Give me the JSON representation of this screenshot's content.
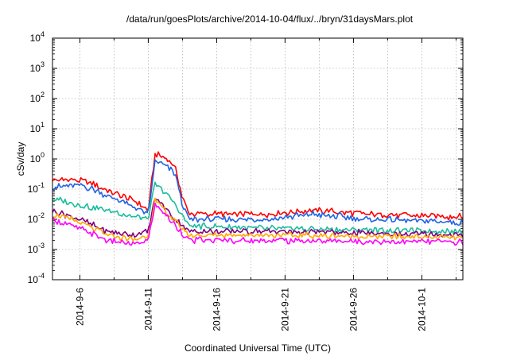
{
  "chart_data": {
    "type": "line",
    "title": "/data/run/goesPlots/archive/2014-10-04/flux/../bryn/31daysMars.plot",
    "xlabel": "Coordinated Universal Time (UTC)",
    "ylabel": "cSv/day",
    "y_scale": "log",
    "ylim": [
      0.0001,
      10000
    ],
    "xlim": [
      "2014-09-04",
      "2014-10-04"
    ],
    "grid": true,
    "x_ticks": [
      "2014-9-6",
      "2014-9-11",
      "2014-9-16",
      "2014-9-21",
      "2014-9-26",
      "2014-10-1"
    ],
    "y_ticks": [
      {
        "value": 0.0001,
        "base": "10",
        "exp": "-4"
      },
      {
        "value": 0.001,
        "base": "10",
        "exp": "-3"
      },
      {
        "value": 0.01,
        "base": "10",
        "exp": "-2"
      },
      {
        "value": 0.1,
        "base": "10",
        "exp": "-1"
      },
      {
        "value": 1,
        "base": "10",
        "exp": "0"
      },
      {
        "value": 10,
        "base": "10",
        "exp": "1"
      },
      {
        "value": 100,
        "base": "10",
        "exp": "2"
      },
      {
        "value": 1000,
        "base": "10",
        "exp": "3"
      },
      {
        "value": 10000,
        "base": "10",
        "exp": "4"
      }
    ],
    "series": [
      {
        "color": "#ff0000",
        "points": [
          [
            "2014-09-04",
            0.2
          ],
          [
            "2014-09-06",
            0.2
          ],
          [
            "2014-09-07",
            0.15
          ],
          [
            "2014-09-08",
            0.09
          ],
          [
            "2014-09-09",
            0.06
          ],
          [
            "2014-09-10",
            0.04
          ],
          [
            "2014-09-11",
            0.02
          ],
          [
            "2014-09-11.5",
            1.5
          ],
          [
            "2014-09-12",
            1.2
          ],
          [
            "2014-09-12.5",
            0.9
          ],
          [
            "2014-09-13",
            0.5
          ],
          [
            "2014-09-13.5",
            0.05
          ],
          [
            "2014-09-14",
            0.015
          ],
          [
            "2014-09-20",
            0.015
          ],
          [
            "2014-09-23",
            0.02
          ],
          [
            "2014-09-27",
            0.015
          ],
          [
            "2014-10-04",
            0.012
          ]
        ]
      },
      {
        "color": "#1e64e6",
        "points": [
          [
            "2014-09-04",
            0.12
          ],
          [
            "2014-09-06",
            0.13
          ],
          [
            "2014-09-07",
            0.1
          ],
          [
            "2014-09-08",
            0.06
          ],
          [
            "2014-09-09",
            0.04
          ],
          [
            "2014-09-10",
            0.025
          ],
          [
            "2014-09-11",
            0.015
          ],
          [
            "2014-09-11.5",
            0.8
          ],
          [
            "2014-09-12",
            0.7
          ],
          [
            "2014-09-12.5",
            0.5
          ],
          [
            "2014-09-13",
            0.3
          ],
          [
            "2014-09-13.5",
            0.03
          ],
          [
            "2014-09-14",
            0.01
          ],
          [
            "2014-09-20",
            0.01
          ],
          [
            "2014-09-23",
            0.015
          ],
          [
            "2014-09-27",
            0.01
          ],
          [
            "2014-10-04",
            0.008
          ]
        ]
      },
      {
        "color": "#1abc9c",
        "points": [
          [
            "2014-09-04",
            0.05
          ],
          [
            "2014-09-06",
            0.03
          ],
          [
            "2014-09-08",
            0.02
          ],
          [
            "2014-09-10",
            0.012
          ],
          [
            "2014-09-11",
            0.01
          ],
          [
            "2014-09-11.5",
            0.15
          ],
          [
            "2014-09-12",
            0.1
          ],
          [
            "2014-09-13",
            0.03
          ],
          [
            "2014-09-14",
            0.006
          ],
          [
            "2014-09-20",
            0.005
          ],
          [
            "2014-10-04",
            0.004
          ]
        ]
      },
      {
        "color": "#800080",
        "points": [
          [
            "2014-09-04",
            0.02
          ],
          [
            "2014-09-06",
            0.01
          ],
          [
            "2014-09-08",
            0.004
          ],
          [
            "2014-09-10",
            0.003
          ],
          [
            "2014-09-11",
            0.004
          ],
          [
            "2014-09-11.5",
            0.05
          ],
          [
            "2014-09-12",
            0.03
          ],
          [
            "2014-09-13",
            0.01
          ],
          [
            "2014-09-14",
            0.004
          ],
          [
            "2014-09-20",
            0.004
          ],
          [
            "2014-10-04",
            0.003
          ]
        ]
      },
      {
        "color": "#ffaa00",
        "points": [
          [
            "2014-09-04",
            0.015
          ],
          [
            "2014-09-06",
            0.008
          ],
          [
            "2014-09-08",
            0.003
          ],
          [
            "2014-09-10",
            0.002
          ],
          [
            "2014-09-11",
            0.003
          ],
          [
            "2014-09-11.5",
            0.04
          ],
          [
            "2014-09-12",
            0.025
          ],
          [
            "2014-09-13",
            0.008
          ],
          [
            "2014-09-14",
            0.003
          ],
          [
            "2014-09-20",
            0.003
          ],
          [
            "2014-10-04",
            0.0025
          ]
        ]
      },
      {
        "color": "#ff00ff",
        "points": [
          [
            "2014-09-04",
            0.01
          ],
          [
            "2014-09-06",
            0.005
          ],
          [
            "2014-09-08",
            0.002
          ],
          [
            "2014-09-10",
            0.0015
          ],
          [
            "2014-09-11",
            0.002
          ],
          [
            "2014-09-11.5",
            0.03
          ],
          [
            "2014-09-12",
            0.02
          ],
          [
            "2014-09-13",
            0.006
          ],
          [
            "2014-09-14",
            0.002
          ],
          [
            "2014-09-20",
            0.002
          ],
          [
            "2014-10-04",
            0.0018
          ]
        ]
      }
    ]
  }
}
